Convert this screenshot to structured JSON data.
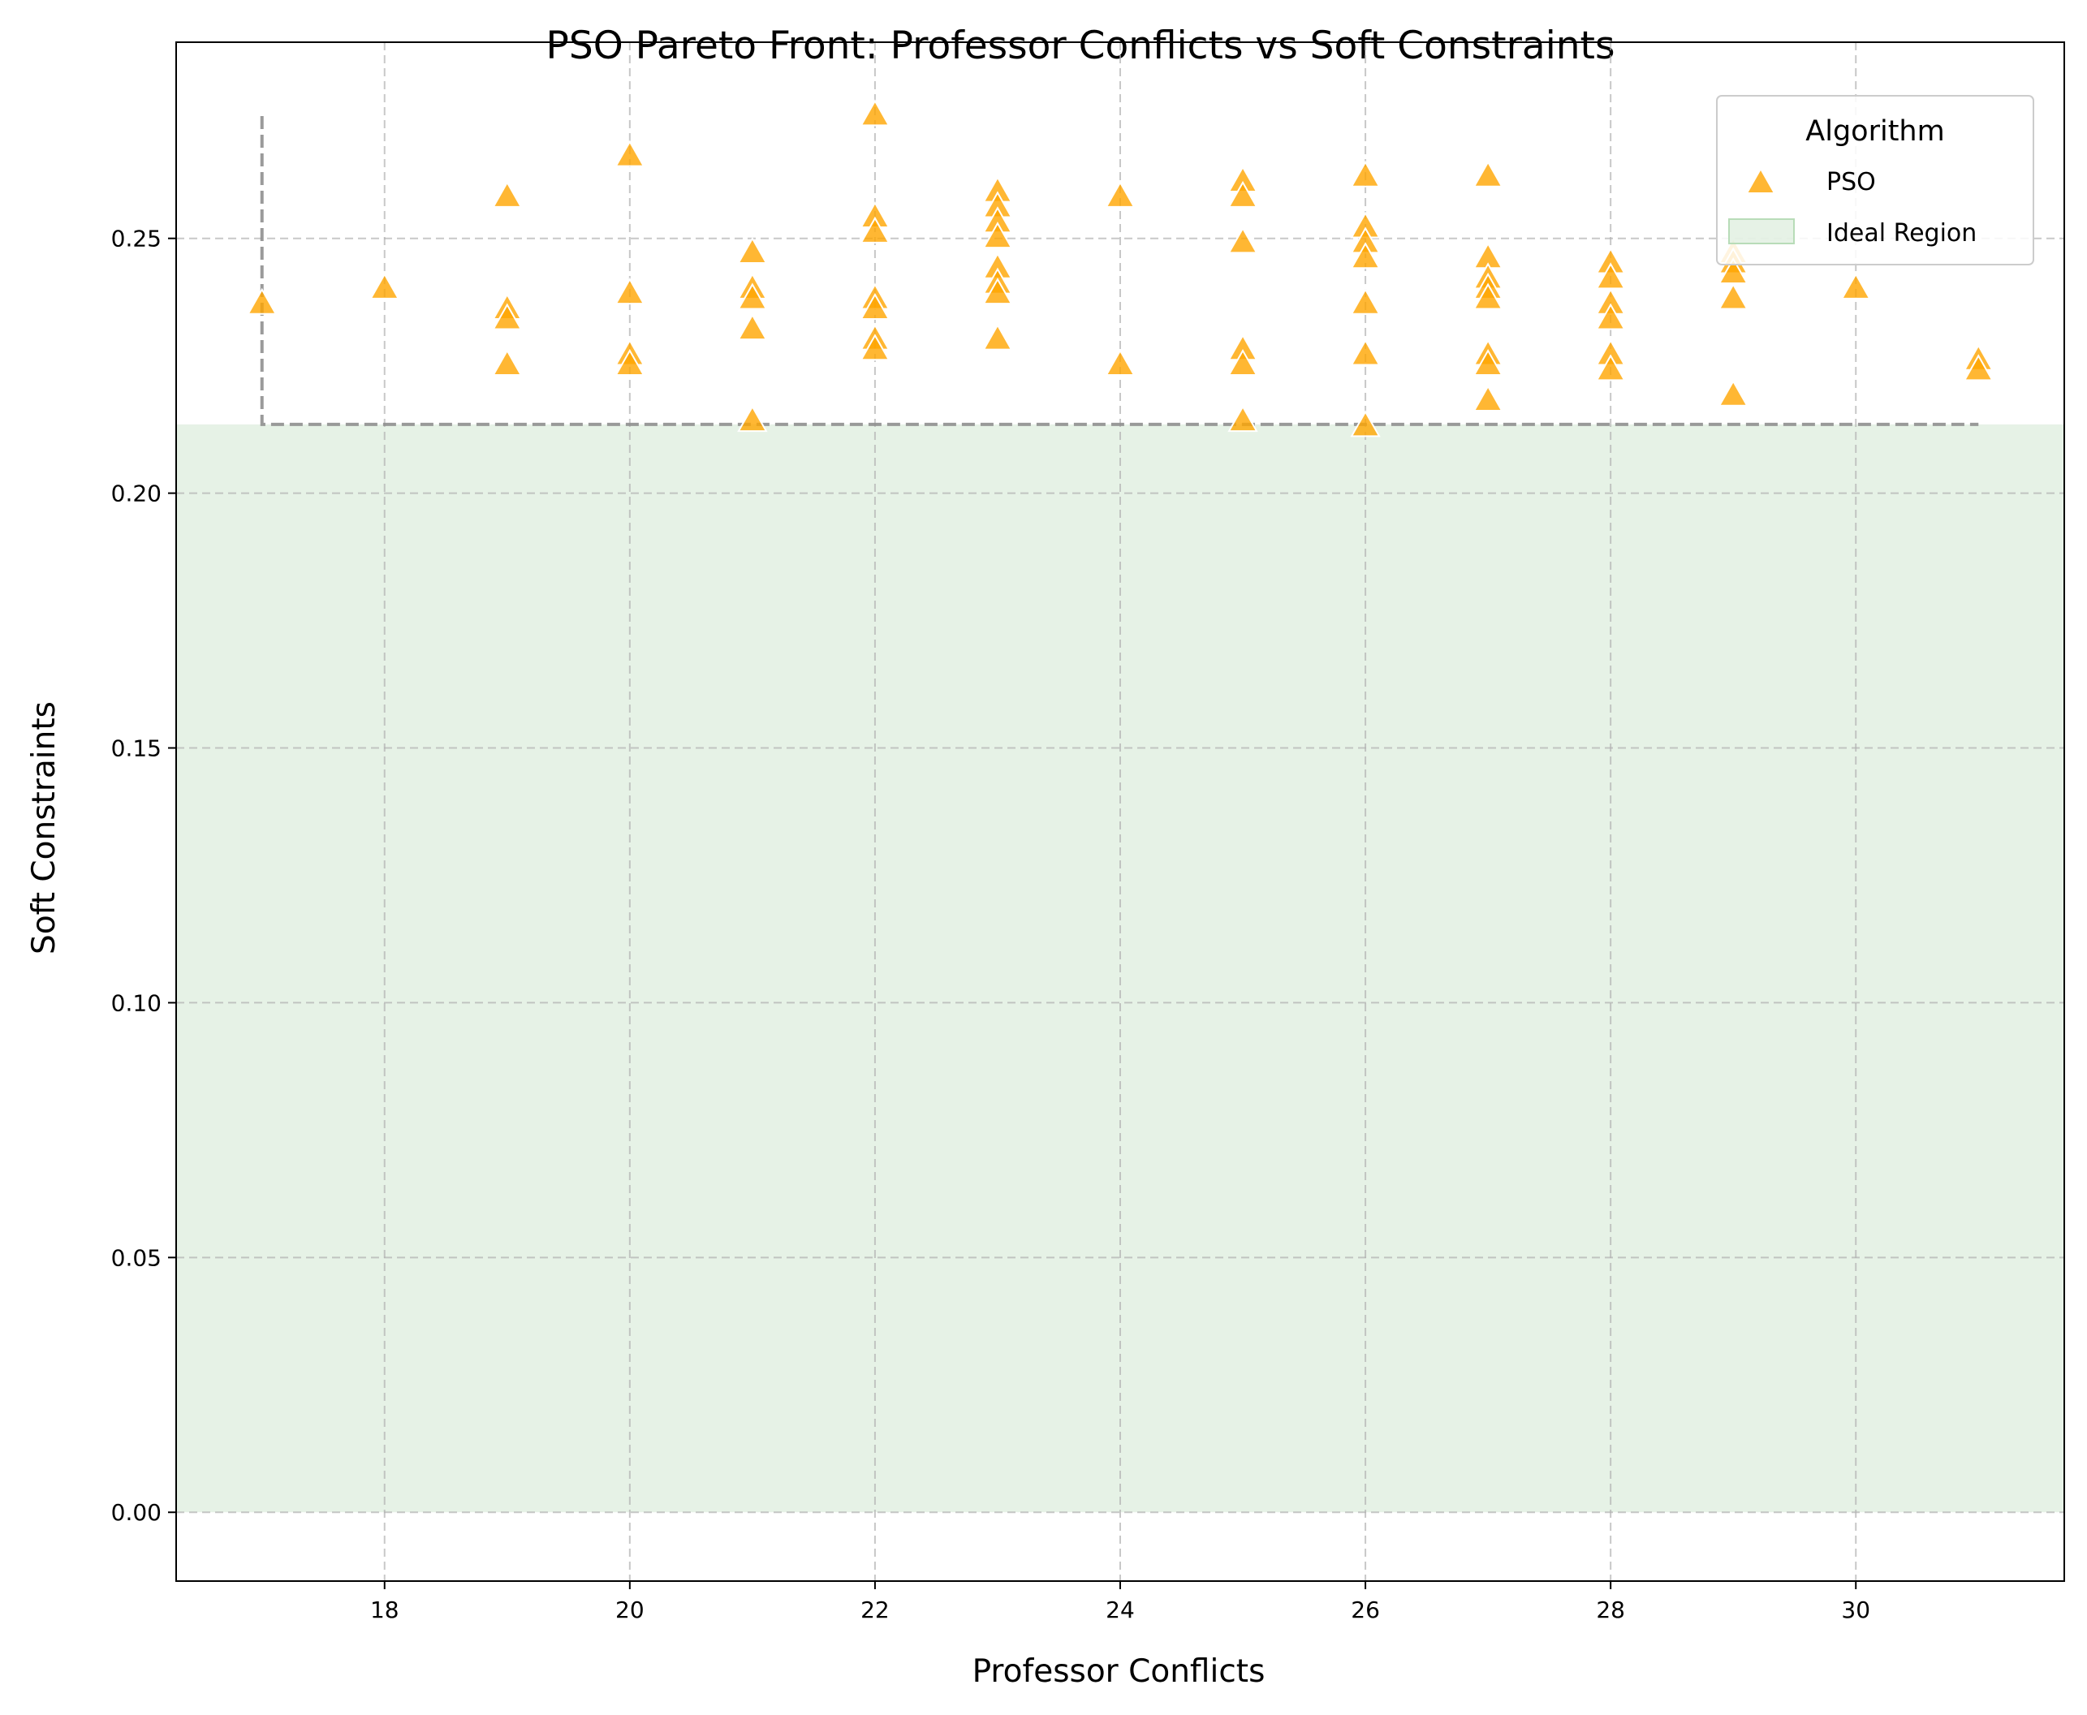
{
  "chart_data": {
    "type": "scatter",
    "title": "PSO Pareto Front: Professor Conflicts vs Soft Constraints",
    "xlabel": "Professor Conflicts",
    "ylabel": "Soft Constraints",
    "xlim": [
      16.3,
      31.7
    ],
    "ylim": [
      -0.0135,
      0.2885
    ],
    "xticks": [
      18,
      20,
      22,
      24,
      26,
      28,
      30
    ],
    "yticks": [
      0.0,
      0.05,
      0.1,
      0.15,
      0.2,
      0.25
    ],
    "xtick_labels": [
      "18",
      "20",
      "22",
      "24",
      "26",
      "28",
      "30"
    ],
    "ytick_labels": [
      "0.00",
      "0.05",
      "0.10",
      "0.15",
      "0.20",
      "0.25"
    ],
    "grid": true,
    "legend_title": "Algorithm",
    "legend_placement": "top-right",
    "ideal_region": {
      "label": "Ideal Region",
      "x": [
        16.3,
        31.7
      ],
      "y": [
        0.0,
        0.2135
      ],
      "color": "#d5ead5"
    },
    "pareto_bounds": {
      "x_min": 17,
      "x_max": 31,
      "y_min": 0.2135,
      "y_top": 0.274,
      "color": "#8f8f8f"
    },
    "series": [
      {
        "name": "PSO",
        "marker": "triangle",
        "color": "#ffa500",
        "points": [
          [
            17,
            0.237
          ],
          [
            18,
            0.24
          ],
          [
            19,
            0.258
          ],
          [
            19,
            0.236
          ],
          [
            19,
            0.234
          ],
          [
            19,
            0.225
          ],
          [
            20,
            0.266
          ],
          [
            20,
            0.239
          ],
          [
            20,
            0.227
          ],
          [
            20,
            0.225
          ],
          [
            21,
            0.247
          ],
          [
            21,
            0.24
          ],
          [
            21,
            0.238
          ],
          [
            21,
            0.232
          ],
          [
            21,
            0.214
          ],
          [
            22,
            0.274
          ],
          [
            22,
            0.254
          ],
          [
            22,
            0.251
          ],
          [
            22,
            0.238
          ],
          [
            22,
            0.236
          ],
          [
            22,
            0.23
          ],
          [
            22,
            0.228
          ],
          [
            23,
            0.259
          ],
          [
            23,
            0.256
          ],
          [
            23,
            0.253
          ],
          [
            23,
            0.25
          ],
          [
            23,
            0.244
          ],
          [
            23,
            0.241
          ],
          [
            23,
            0.239
          ],
          [
            23,
            0.23
          ],
          [
            24,
            0.258
          ],
          [
            24,
            0.225
          ],
          [
            25,
            0.261
          ],
          [
            25,
            0.258
          ],
          [
            25,
            0.249
          ],
          [
            25,
            0.228
          ],
          [
            25,
            0.225
          ],
          [
            25,
            0.214
          ],
          [
            26,
            0.262
          ],
          [
            26,
            0.252
          ],
          [
            26,
            0.249
          ],
          [
            26,
            0.246
          ],
          [
            26,
            0.237
          ],
          [
            26,
            0.227
          ],
          [
            26,
            0.213
          ],
          [
            27,
            0.262
          ],
          [
            27,
            0.246
          ],
          [
            27,
            0.242
          ],
          [
            27,
            0.24
          ],
          [
            27,
            0.238
          ],
          [
            27,
            0.227
          ],
          [
            27,
            0.225
          ],
          [
            27,
            0.218
          ],
          [
            28,
            0.245
          ],
          [
            28,
            0.242
          ],
          [
            28,
            0.237
          ],
          [
            28,
            0.234
          ],
          [
            28,
            0.227
          ],
          [
            28,
            0.224
          ],
          [
            29,
            0.247
          ],
          [
            29,
            0.245
          ],
          [
            29,
            0.243
          ],
          [
            29,
            0.238
          ],
          [
            29,
            0.219
          ],
          [
            30,
            0.24
          ],
          [
            31,
            0.226
          ],
          [
            31,
            0.224
          ]
        ]
      }
    ]
  }
}
